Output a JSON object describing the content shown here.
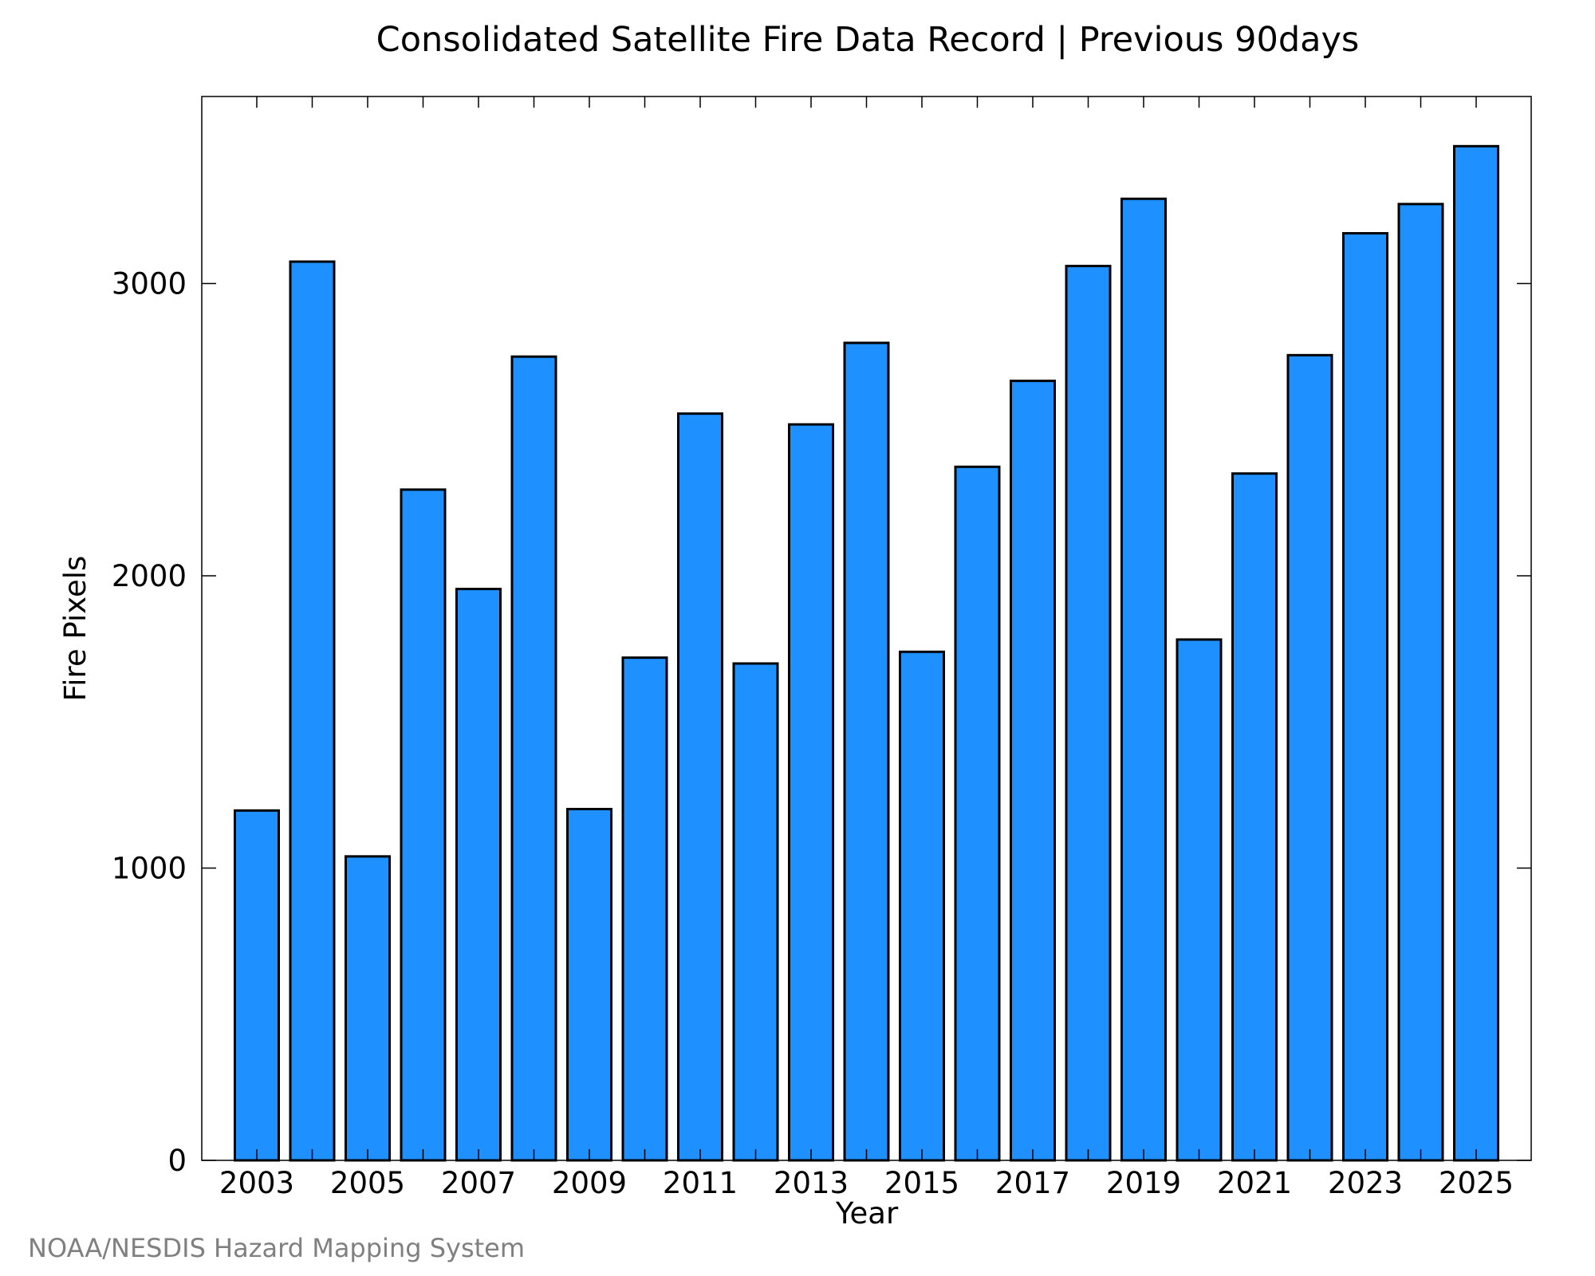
{
  "chart_data": {
    "type": "bar",
    "title": "Consolidated Satellite Fire Data Record | Previous 90days",
    "xlabel": "Year",
    "ylabel": "Fire Pixels",
    "categories": [
      "2003",
      "2004",
      "2005",
      "2006",
      "2007",
      "2008",
      "2009",
      "2010",
      "2011",
      "2012",
      "2013",
      "2014",
      "2015",
      "2016",
      "2017",
      "2018",
      "2019",
      "2020",
      "2021",
      "2022",
      "2023",
      "2024",
      "2025"
    ],
    "values": [
      1197,
      3075,
      1040,
      2295,
      1955,
      2750,
      1202,
      1720,
      2555,
      1700,
      2518,
      2797,
      1740,
      2373,
      2667,
      3060,
      3290,
      1782,
      2350,
      2755,
      3172,
      3272,
      3470
    ],
    "x_tick_labels": [
      "2003",
      "2005",
      "2007",
      "2009",
      "2011",
      "2013",
      "2015",
      "2017",
      "2019",
      "2021",
      "2023",
      "2025"
    ],
    "y_ticks": [
      0,
      1000,
      2000,
      3000
    ],
    "ylim": [
      0,
      3640
    ],
    "grid": false,
    "legend": "none",
    "bar_color": "#1e90ff",
    "edge_color": "#000000"
  },
  "credit": "NOAA/NESDIS Hazard Mapping System"
}
